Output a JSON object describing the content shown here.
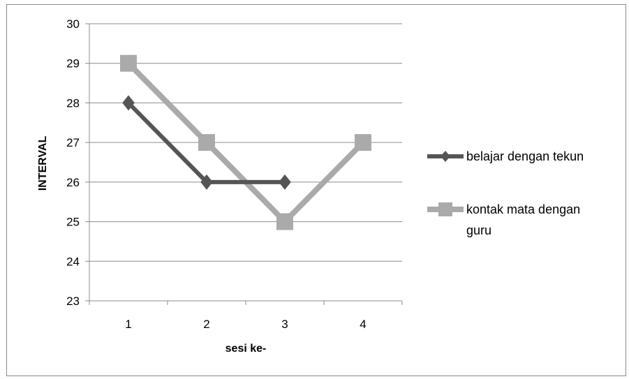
{
  "chart_data": {
    "type": "line",
    "categories": [
      "1",
      "2",
      "3",
      "4"
    ],
    "xlabel": "sesi ke-",
    "ylabel": "INTERVAL",
    "ylim": [
      23,
      30
    ],
    "yticks": [
      23,
      24,
      25,
      26,
      27,
      28,
      29,
      30
    ],
    "grid": true,
    "legend_position": "right",
    "series": [
      {
        "name": "belajar dengan tekun",
        "values": [
          28,
          26,
          26,
          null
        ],
        "marker": "diamond",
        "color": "#555555"
      },
      {
        "name": "kontak mata dengan guru",
        "legend_lines": [
          "kontak mata dengan",
          "guru"
        ],
        "values": [
          29,
          27,
          25,
          27
        ],
        "marker": "square",
        "color": "#aaaaaa"
      }
    ]
  }
}
